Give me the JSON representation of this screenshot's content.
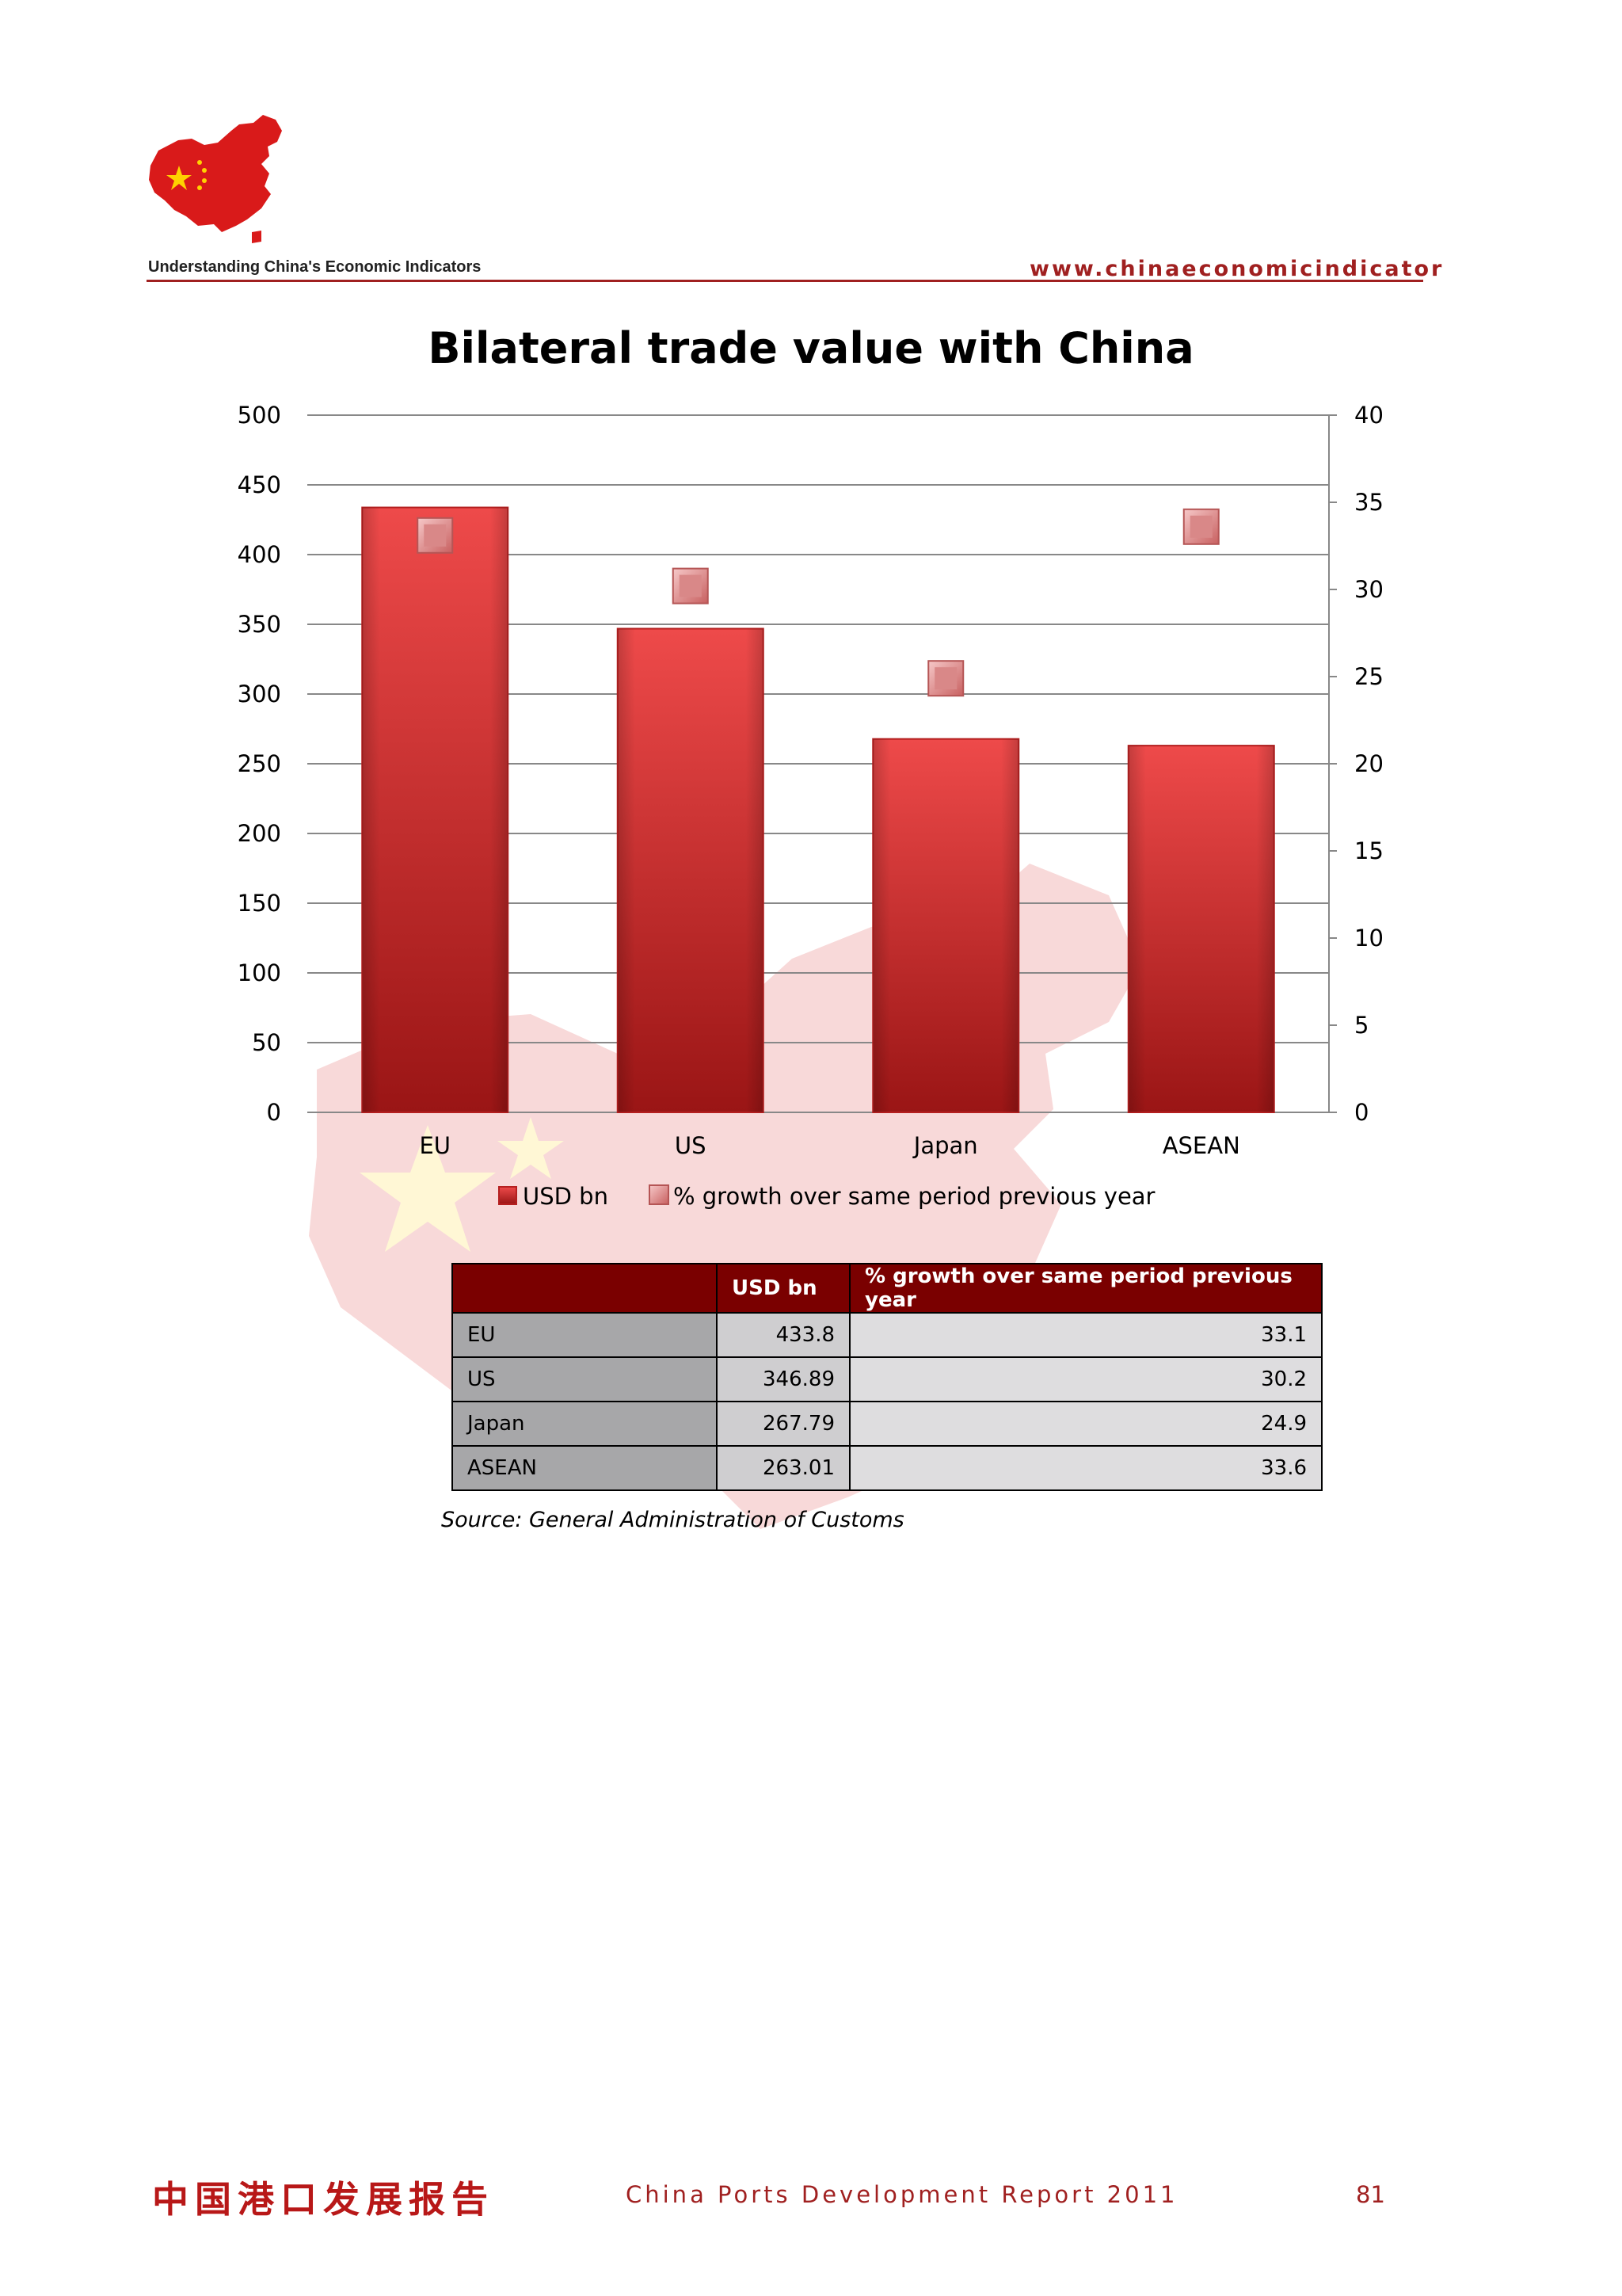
{
  "header": {
    "left_text": "Understanding China's Economic Indicators",
    "right_text": "www.chinaeconomicindicator"
  },
  "colors": {
    "accent": "#a02020",
    "bar": "#d42a2a",
    "marker": "#e8a0a0",
    "table_header": "#7a0000"
  },
  "chart_data": {
    "type": "bar",
    "title": "Bilateral trade value with China",
    "categories": [
      "EU",
      "US",
      "Japan",
      "ASEAN"
    ],
    "series": [
      {
        "name": "USD bn",
        "type": "bar",
        "axis": "left",
        "values": [
          433.8,
          346.89,
          267.79,
          263.01
        ]
      },
      {
        "name": "% growth over same period previous year",
        "type": "marker",
        "axis": "right",
        "values": [
          33.1,
          30.2,
          24.9,
          33.6
        ]
      }
    ],
    "y_left": {
      "min": 0,
      "max": 500,
      "step": 50
    },
    "y_right": {
      "min": 0,
      "max": 40,
      "step": 5
    },
    "grid": true,
    "legend_position": "bottom"
  },
  "table": {
    "headers": [
      "",
      "USD bn",
      "% growth over same period previous year"
    ],
    "rows": [
      {
        "label": "EU",
        "usd": "433.8",
        "growth": "33.1"
      },
      {
        "label": "US",
        "usd": "346.89",
        "growth": "30.2"
      },
      {
        "label": "Japan",
        "usd": "267.79",
        "growth": "24.9"
      },
      {
        "label": "ASEAN",
        "usd": "263.01",
        "growth": "33.6"
      }
    ]
  },
  "source": "Source: General Administration of Customs",
  "footer": {
    "chinese_title": "中国港口发展报告",
    "report_title": "China Ports Development Report 2011",
    "page_number": "81"
  }
}
